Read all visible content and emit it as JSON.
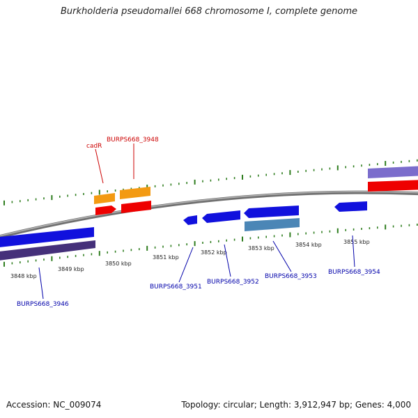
{
  "title": "Burkholderia pseudomallei 668 chromosome I, complete genome",
  "footer": {
    "accession": "Accession: NC_009074",
    "summary": "Topology: circular; Length: 3,912,947 bp; Genes: 4,000"
  },
  "colors": {
    "backbone": "#8a8a8a",
    "tick": "#2e7d1e",
    "gene_blue": "#1111dd",
    "gene_red": "#ee0000",
    "gene_orange": "#f39a12",
    "gene_purple": "#45307a",
    "gene_lavender": "#7b6dcc",
    "gene_steel": "#4b86b6",
    "label_red": "#cc0000",
    "label_blue": "#0000aa"
  },
  "scale_labels": [
    "3848 kbp",
    "3849 kbp",
    "3850 kbp",
    "3851 kbp",
    "3852 kbp",
    "3853 kbp",
    "3854 kbp",
    "3855 kbp"
  ],
  "gene_labels": [
    {
      "text": "cadR",
      "color": "red"
    },
    {
      "text": "BURPS668_3948",
      "color": "red"
    },
    {
      "text": "BURPS668_3946",
      "color": "blue"
    },
    {
      "text": "BURPS668_3951",
      "color": "blue"
    },
    {
      "text": "BURPS668_3952",
      "color": "blue"
    },
    {
      "text": "BURPS668_3953",
      "color": "blue"
    },
    {
      "text": "BURPS668_3954",
      "color": "blue"
    }
  ]
}
